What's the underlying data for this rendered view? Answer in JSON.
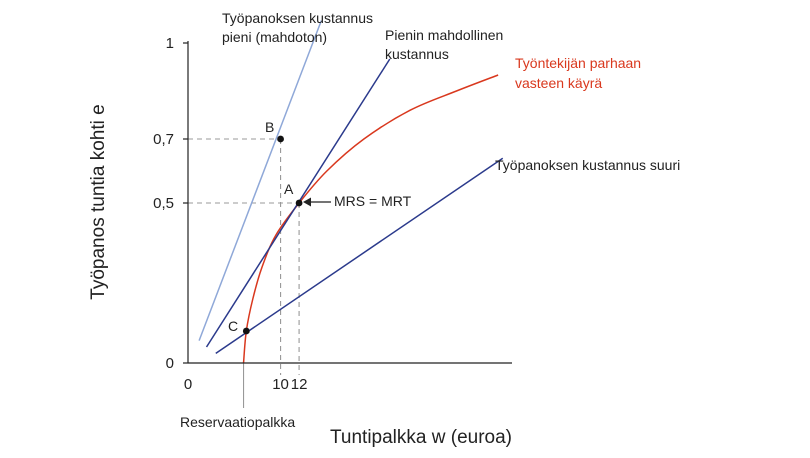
{
  "chart_data": {
    "type": "line",
    "xlabel": "Tuntipalkka w (euroa)",
    "ylabel": "Työpanos tuntia kohti e",
    "xlim": [
      0,
      35
    ],
    "ylim": [
      0,
      1
    ],
    "x_ticks": [
      "0",
      "10",
      "12"
    ],
    "x_tick_values": [
      0,
      10,
      12
    ],
    "y_ticks": [
      "0",
      "0,5",
      "0,7",
      "1"
    ],
    "y_tick_values": [
      0,
      0.5,
      0.7,
      1
    ],
    "reservation_wage": 6,
    "series": [
      {
        "name": "Työntekijän parhaan vasteen käyrä",
        "color": "#d9381e",
        "kind": "best-response",
        "points": [
          [
            6,
            0
          ],
          [
            6.3,
            0.1
          ],
          [
            7,
            0.2
          ],
          [
            8,
            0.3
          ],
          [
            9.5,
            0.4
          ],
          [
            12,
            0.5
          ],
          [
            15,
            0.6
          ],
          [
            19,
            0.7
          ],
          [
            24,
            0.79
          ],
          [
            29,
            0.85
          ],
          [
            33.5,
            0.9
          ]
        ]
      },
      {
        "name": "Työpanoksen kustannus pieni (mahdoton)",
        "color": "#8fa8d8",
        "kind": "line",
        "points": [
          [
            1.2,
            0.07
          ],
          [
            14.4,
            1.07
          ]
        ]
      },
      {
        "name": "Pienin mahdollinen kustannus",
        "color": "#2b3a8c",
        "kind": "line",
        "points": [
          [
            2,
            0.05
          ],
          [
            21.8,
            0.95
          ]
        ]
      },
      {
        "name": "Työpanoksen kustannus suuri",
        "color": "#2b3a8c",
        "kind": "line",
        "points": [
          [
            3,
            0.03
          ],
          [
            34,
            0.64
          ]
        ]
      }
    ],
    "points": [
      {
        "label": "A",
        "x": 12,
        "y": 0.5
      },
      {
        "label": "B",
        "x": 10,
        "y": 0.7
      },
      {
        "label": "C",
        "x": 6.3,
        "y": 0.1
      }
    ],
    "annotations": {
      "low_cost_line1": "Työpanoksen kustannus",
      "low_cost_line2": "pieni (mahdoton)",
      "min_cost_line1": "Pienin mahdollinen",
      "min_cost_line2": "kustannus",
      "best_response_line1": "Työntekijän parhaan",
      "best_response_line2": "vasteen käyrä",
      "high_cost": "Työpanoksen kustannus suuri",
      "mrs_mrt": "MRS = MRT",
      "reservation_wage": "Reservaatiopalkka"
    },
    "colors": {
      "axis": "#222222",
      "guide": "#999999",
      "best_response": "#d9381e",
      "dark_blue": "#2b3a8c",
      "light_blue": "#8fa8d8"
    }
  }
}
